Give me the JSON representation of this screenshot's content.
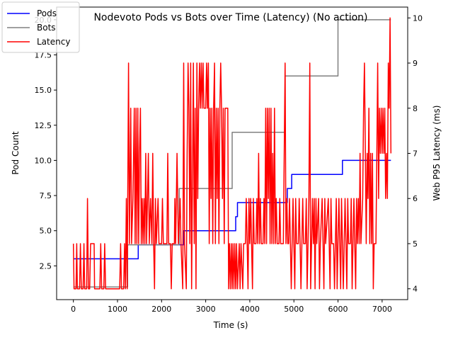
{
  "chart_data": {
    "type": "line",
    "title": "Nodevoto Pods vs Bots over Time (Latency)  (No action)",
    "xlabel": "Time (s)",
    "ylabel_left": "Pod Count",
    "ylabel_right": "Web P95 Latency (ms)",
    "xlim": [
      -380,
      7580
    ],
    "ylim_left": [
      0.1,
      20.9
    ],
    "ylim_right": [
      3.76,
      10.24
    ],
    "x_ticks": [
      0,
      1000,
      2000,
      3000,
      4000,
      5000,
      6000,
      7000
    ],
    "y_ticks_left": [
      2.5,
      5.0,
      7.5,
      10.0,
      12.5,
      15.0,
      17.5,
      20.0
    ],
    "y_tick_labels_left": [
      "2.5",
      "5.0",
      "7.5",
      "10.0",
      "12.5",
      "15.0",
      "17.5",
      "20.0"
    ],
    "y_ticks_right": [
      4,
      5,
      6,
      7,
      8,
      9,
      10
    ],
    "grid": false,
    "legend_position": "top-left",
    "series": [
      {
        "name": "Pods",
        "axis": "left",
        "color": "#0000ff",
        "points": [
          [
            0,
            3
          ],
          [
            1470,
            3
          ],
          [
            1470,
            4
          ],
          [
            2500,
            4
          ],
          [
            2500,
            5
          ],
          [
            3680,
            5
          ],
          [
            3680,
            6
          ],
          [
            3720,
            6
          ],
          [
            3720,
            7
          ],
          [
            4850,
            7
          ],
          [
            4850,
            8
          ],
          [
            4950,
            8
          ],
          [
            4950,
            9
          ],
          [
            6100,
            9
          ],
          [
            6100,
            10
          ],
          [
            7200,
            10
          ]
        ]
      },
      {
        "name": "Bots",
        "axis": "left",
        "color": "#808080",
        "points": [
          [
            0,
            1
          ],
          [
            1230,
            1
          ],
          [
            1230,
            4
          ],
          [
            2400,
            4
          ],
          [
            2400,
            8
          ],
          [
            3600,
            8
          ],
          [
            3600,
            12
          ],
          [
            4800,
            12
          ],
          [
            4800,
            16
          ],
          [
            6000,
            16
          ],
          [
            6000,
            20
          ],
          [
            7200,
            20
          ]
        ]
      },
      {
        "name": "Latency",
        "axis": "right",
        "color": "#ff0000",
        "points": [
          [
            0,
            5
          ],
          [
            15,
            4
          ],
          [
            60,
            4
          ],
          [
            75,
            5
          ],
          [
            90,
            4
          ],
          [
            140,
            4
          ],
          [
            160,
            5
          ],
          [
            180,
            4
          ],
          [
            220,
            4
          ],
          [
            240,
            5
          ],
          [
            255,
            4
          ],
          [
            300,
            4
          ],
          [
            320,
            6
          ],
          [
            340,
            4
          ],
          [
            370,
            4
          ],
          [
            390,
            5
          ],
          [
            440,
            5
          ],
          [
            470,
            5
          ],
          [
            480,
            4
          ],
          [
            600,
            4
          ],
          [
            620,
            5
          ],
          [
            640,
            4
          ],
          [
            690,
            4
          ],
          [
            710,
            5
          ],
          [
            730,
            4
          ],
          [
            1050,
            4
          ],
          [
            1070,
            5
          ],
          [
            1090,
            4
          ],
          [
            1140,
            4
          ],
          [
            1160,
            5
          ],
          [
            1180,
            4
          ],
          [
            1200,
            6
          ],
          [
            1220,
            4
          ],
          [
            1250,
            9
          ],
          [
            1270,
            5
          ],
          [
            1300,
            8
          ],
          [
            1320,
            5
          ],
          [
            1350,
            6
          ],
          [
            1380,
            8
          ],
          [
            1400,
            5
          ],
          [
            1420,
            8
          ],
          [
            1440,
            5
          ],
          [
            1460,
            8
          ],
          [
            1480,
            5
          ],
          [
            1500,
            7
          ],
          [
            1520,
            8
          ],
          [
            1540,
            5
          ],
          [
            1560,
            6
          ],
          [
            1580,
            5
          ],
          [
            1600,
            6
          ],
          [
            1620,
            5
          ],
          [
            1640,
            7
          ],
          [
            1660,
            5
          ],
          [
            1700,
            7
          ],
          [
            1720,
            5
          ],
          [
            1750,
            6
          ],
          [
            1780,
            5
          ],
          [
            1800,
            7
          ],
          [
            1820,
            5
          ],
          [
            1840,
            4
          ],
          [
            1860,
            6
          ],
          [
            1880,
            5
          ],
          [
            1920,
            6
          ],
          [
            1940,
            5
          ],
          [
            2000,
            5
          ],
          [
            2020,
            6
          ],
          [
            2040,
            5
          ],
          [
            2120,
            5
          ],
          [
            2140,
            7
          ],
          [
            2160,
            5
          ],
          [
            2200,
            5
          ],
          [
            2220,
            4
          ],
          [
            2240,
            5
          ],
          [
            2290,
            5
          ],
          [
            2300,
            6
          ],
          [
            2320,
            5
          ],
          [
            2350,
            7
          ],
          [
            2380,
            5
          ],
          [
            2420,
            6
          ],
          [
            2440,
            5
          ],
          [
            2480,
            4
          ],
          [
            2500,
            9
          ],
          [
            2520,
            5
          ],
          [
            2560,
            4
          ],
          [
            2580,
            7
          ],
          [
            2600,
            9
          ],
          [
            2620,
            8
          ],
          [
            2640,
            5
          ],
          [
            2660,
            9
          ],
          [
            2680,
            4
          ],
          [
            2720,
            9
          ],
          [
            2740,
            5
          ],
          [
            2760,
            8
          ],
          [
            2780,
            4
          ],
          [
            2800,
            9
          ],
          [
            2820,
            6
          ],
          [
            2840,
            8
          ],
          [
            2860,
            9
          ],
          [
            2880,
            8
          ],
          [
            2900,
            9
          ],
          [
            2920,
            8
          ],
          [
            2940,
            9
          ],
          [
            2960,
            8
          ],
          [
            3000,
            8
          ],
          [
            3020,
            9
          ],
          [
            3040,
            8
          ],
          [
            3060,
            9
          ],
          [
            3080,
            5
          ],
          [
            3100,
            8
          ],
          [
            3120,
            6
          ],
          [
            3140,
            8
          ],
          [
            3160,
            5
          ],
          [
            3180,
            8
          ],
          [
            3200,
            9
          ],
          [
            3220,
            5
          ],
          [
            3240,
            8
          ],
          [
            3260,
            6
          ],
          [
            3280,
            8
          ],
          [
            3300,
            5
          ],
          [
            3320,
            8
          ],
          [
            3340,
            9
          ],
          [
            3360,
            8
          ],
          [
            3380,
            6
          ],
          [
            3400,
            8
          ],
          [
            3420,
            5
          ],
          [
            3440,
            8
          ],
          [
            3500,
            8
          ],
          [
            3520,
            4
          ],
          [
            3540,
            5
          ],
          [
            3560,
            4
          ],
          [
            3580,
            5
          ],
          [
            3600,
            4
          ],
          [
            3620,
            5
          ],
          [
            3640,
            4
          ],
          [
            3660,
            5
          ],
          [
            3680,
            4
          ],
          [
            3700,
            5
          ],
          [
            3720,
            4
          ],
          [
            3760,
            5
          ],
          [
            3780,
            4
          ],
          [
            3800,
            5
          ],
          [
            3840,
            4
          ],
          [
            3860,
            5
          ],
          [
            3900,
            5
          ],
          [
            3920,
            6
          ],
          [
            3940,
            5
          ],
          [
            3960,
            4
          ],
          [
            3980,
            6
          ],
          [
            4000,
            5
          ],
          [
            4020,
            6
          ],
          [
            4040,
            5
          ],
          [
            4060,
            4
          ],
          [
            4080,
            6
          ],
          [
            4100,
            5
          ],
          [
            4140,
            5
          ],
          [
            4160,
            6
          ],
          [
            4180,
            5
          ],
          [
            4200,
            7
          ],
          [
            4220,
            5
          ],
          [
            4240,
            6
          ],
          [
            4260,
            5
          ],
          [
            4300,
            5
          ],
          [
            4320,
            6
          ],
          [
            4340,
            5
          ],
          [
            4360,
            8
          ],
          [
            4380,
            5
          ],
          [
            4400,
            8
          ],
          [
            4420,
            6
          ],
          [
            4440,
            8
          ],
          [
            4460,
            5
          ],
          [
            4480,
            8
          ],
          [
            4500,
            5
          ],
          [
            4520,
            7
          ],
          [
            4540,
            5
          ],
          [
            4560,
            8
          ],
          [
            4580,
            5
          ],
          [
            4600,
            6
          ],
          [
            4620,
            5
          ],
          [
            4660,
            5
          ],
          [
            4680,
            6
          ],
          [
            4700,
            5
          ],
          [
            4760,
            5
          ],
          [
            4800,
            9
          ],
          [
            4820,
            5
          ],
          [
            4840,
            6
          ],
          [
            4860,
            5
          ],
          [
            4880,
            5
          ],
          [
            4900,
            6
          ],
          [
            4920,
            5
          ],
          [
            4940,
            4
          ],
          [
            4960,
            5
          ],
          [
            4980,
            6
          ],
          [
            5000,
            5
          ],
          [
            5020,
            4
          ],
          [
            5040,
            6
          ],
          [
            5060,
            5
          ],
          [
            5100,
            5
          ],
          [
            5120,
            6
          ],
          [
            5140,
            5
          ],
          [
            5160,
            4
          ],
          [
            5180,
            5
          ],
          [
            5200,
            6
          ],
          [
            5220,
            5
          ],
          [
            5260,
            5
          ],
          [
            5280,
            6
          ],
          [
            5300,
            4
          ],
          [
            5320,
            5
          ],
          [
            5340,
            6
          ],
          [
            5360,
            9
          ],
          [
            5380,
            4
          ],
          [
            5400,
            5
          ],
          [
            5420,
            6
          ],
          [
            5440,
            5
          ],
          [
            5460,
            6
          ],
          [
            5480,
            4
          ],
          [
            5500,
            6
          ],
          [
            5520,
            5
          ],
          [
            5560,
            6
          ],
          [
            5580,
            4
          ],
          [
            5600,
            5
          ],
          [
            5640,
            6
          ],
          [
            5660,
            5
          ],
          [
            5680,
            4
          ],
          [
            5700,
            6
          ],
          [
            5720,
            5
          ],
          [
            5780,
            6
          ],
          [
            5800,
            5
          ],
          [
            5820,
            4
          ],
          [
            5840,
            6
          ],
          [
            5860,
            5
          ],
          [
            5900,
            5
          ],
          [
            5920,
            4
          ],
          [
            5940,
            5
          ],
          [
            5960,
            6
          ],
          [
            5980,
            4
          ],
          [
            6000,
            5
          ],
          [
            6020,
            6
          ],
          [
            6040,
            5
          ],
          [
            6060,
            4
          ],
          [
            6080,
            6
          ],
          [
            6100,
            5
          ],
          [
            6120,
            4
          ],
          [
            6140,
            5
          ],
          [
            6160,
            6
          ],
          [
            6180,
            5
          ],
          [
            6200,
            4
          ],
          [
            6220,
            6
          ],
          [
            6240,
            5
          ],
          [
            6280,
            5
          ],
          [
            6300,
            6
          ],
          [
            6320,
            4
          ],
          [
            6340,
            5
          ],
          [
            6360,
            6
          ],
          [
            6380,
            5
          ],
          [
            6400,
            4
          ],
          [
            6420,
            6
          ],
          [
            6440,
            5
          ],
          [
            6460,
            6
          ],
          [
            6480,
            5
          ],
          [
            6500,
            7
          ],
          [
            6520,
            5
          ],
          [
            6560,
            6
          ],
          [
            6580,
            8
          ],
          [
            6600,
            9
          ],
          [
            6620,
            7
          ],
          [
            6640,
            5
          ],
          [
            6660,
            7
          ],
          [
            6680,
            6
          ],
          [
            6700,
            8
          ],
          [
            6720,
            5
          ],
          [
            6740,
            7
          ],
          [
            6760,
            5
          ],
          [
            6780,
            7
          ],
          [
            6800,
            4
          ],
          [
            6820,
            5
          ],
          [
            6860,
            5
          ],
          [
            6880,
            7
          ],
          [
            6900,
            9
          ],
          [
            6920,
            6
          ],
          [
            6940,
            8
          ],
          [
            6960,
            7
          ],
          [
            6980,
            8
          ],
          [
            7000,
            7
          ],
          [
            7020,
            8
          ],
          [
            7040,
            7
          ],
          [
            7060,
            8
          ],
          [
            7080,
            6
          ],
          [
            7100,
            7
          ],
          [
            7120,
            6
          ],
          [
            7140,
            9
          ],
          [
            7160,
            8
          ],
          [
            7180,
            10
          ],
          [
            7200,
            7
          ]
        ]
      }
    ]
  }
}
